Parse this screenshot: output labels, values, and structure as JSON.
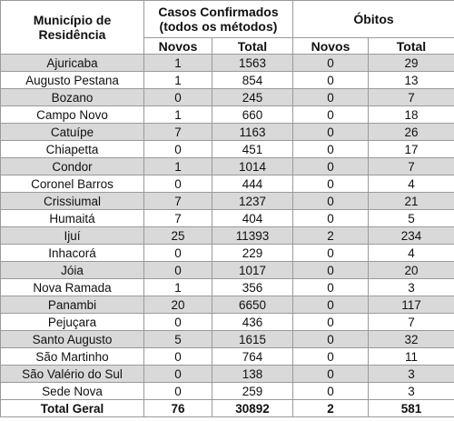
{
  "header": {
    "municipio": "Município de Residência",
    "casos": "Casos Confirmados (todos os métodos)",
    "obitos": "Óbitos",
    "novos_casos": "Novos",
    "total_casos": "Total",
    "novos_obitos": "Novos",
    "total_obitos": "Total"
  },
  "table": {
    "rows": [
      [
        "Ajuricaba",
        1,
        1563,
        0,
        29
      ],
      [
        "Augusto Pestana",
        1,
        854,
        0,
        13
      ],
      [
        "Bozano",
        0,
        245,
        0,
        7
      ],
      [
        "Campo Novo",
        1,
        660,
        0,
        18
      ],
      [
        "Catuípe",
        7,
        1163,
        0,
        26
      ],
      [
        "Chiapetta",
        0,
        451,
        0,
        17
      ],
      [
        "Condor",
        1,
        1014,
        0,
        7
      ],
      [
        "Coronel Barros",
        0,
        444,
        0,
        4
      ],
      [
        "Crissiumal",
        7,
        1237,
        0,
        21
      ],
      [
        "Humaitá",
        7,
        404,
        0,
        5
      ],
      [
        "Ijuí",
        25,
        11393,
        2,
        234
      ],
      [
        "Inhacorá",
        0,
        229,
        0,
        4
      ],
      [
        "Jóia",
        0,
        1017,
        0,
        20
      ],
      [
        "Nova Ramada",
        1,
        356,
        0,
        3
      ],
      [
        "Panambi",
        20,
        6650,
        0,
        117
      ],
      [
        "Pejuçara",
        0,
        436,
        0,
        7
      ],
      [
        "Santo Augusto",
        5,
        1615,
        0,
        32
      ],
      [
        "São Martinho",
        0,
        764,
        0,
        11
      ],
      [
        "São Valério do Sul",
        0,
        138,
        0,
        3
      ],
      [
        "Sede Nova",
        0,
        259,
        0,
        3
      ]
    ],
    "total": [
      "Total Geral",
      76,
      30892,
      2,
      581
    ]
  }
}
